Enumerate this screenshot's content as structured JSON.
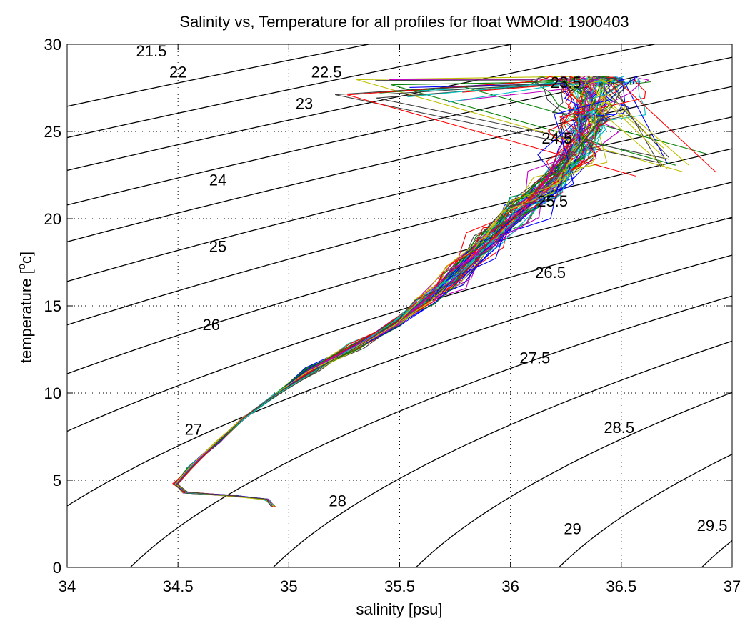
{
  "chart_data": {
    "type": "line",
    "title": "Salinity vs, Temperature for all profiles for float WMOId: 1900403",
    "xlabel": "salinity [psu]",
    "ylabel_main": "temperature [",
    "ylabel_sup": "o",
    "ylabel_end": "c]",
    "xlim": [
      34,
      37
    ],
    "ylim": [
      0,
      30
    ],
    "x_ticks": [
      34,
      34.5,
      35,
      35.5,
      36,
      36.5,
      37
    ],
    "x_tick_labels": [
      "34",
      "34.5",
      "35",
      "35.5",
      "36",
      "36.5",
      "37"
    ],
    "y_ticks": [
      0,
      5,
      10,
      15,
      20,
      25,
      30
    ],
    "y_tick_labels": [
      "0",
      "5",
      "10",
      "15",
      "20",
      "25",
      "30"
    ],
    "grid": true,
    "density_contours": {
      "levels": [
        21.5,
        22,
        22.5,
        23,
        23.5,
        24,
        24.5,
        25,
        25.5,
        26,
        26.5,
        27,
        27.5,
        28,
        28.5,
        29,
        29.5
      ],
      "labels": [
        {
          "text": "21.5",
          "x": 34.38,
          "y": 29.3
        },
        {
          "text": "22",
          "x": 34.5,
          "y": 28.1
        },
        {
          "text": "22.5",
          "x": 35.17,
          "y": 28.1
        },
        {
          "text": "23",
          "x": 35.07,
          "y": 26.3
        },
        {
          "text": "23.5",
          "x": 36.25,
          "y": 27.5
        },
        {
          "text": "24",
          "x": 34.68,
          "y": 21.9
        },
        {
          "text": "24.5",
          "x": 36.21,
          "y": 24.3
        },
        {
          "text": "25",
          "x": 34.68,
          "y": 18.1
        },
        {
          "text": "25.5",
          "x": 36.19,
          "y": 20.7
        },
        {
          "text": "26",
          "x": 34.65,
          "y": 13.6
        },
        {
          "text": "26.5",
          "x": 36.18,
          "y": 16.6
        },
        {
          "text": "27",
          "x": 34.57,
          "y": 7.6
        },
        {
          "text": "27.5",
          "x": 36.11,
          "y": 11.7
        },
        {
          "text": "28",
          "x": 35.22,
          "y": 3.5
        },
        {
          "text": "28.5",
          "x": 36.49,
          "y": 7.7
        },
        {
          "text": "29",
          "x": 36.28,
          "y": 1.9
        },
        {
          "text": "29.5",
          "x": 36.91,
          "y": 2.1
        }
      ]
    },
    "profile_colors": [
      "#0000ff",
      "#008000",
      "#ff0000",
      "#00bfbf",
      "#bf00bf",
      "#bfbf00",
      "#404040"
    ],
    "profile_count": 70,
    "profile_mean_path": [
      {
        "S": 34.93,
        "T": 3.5
      },
      {
        "S": 34.9,
        "T": 3.9
      },
      {
        "S": 34.75,
        "T": 4.1
      },
      {
        "S": 34.53,
        "T": 4.3
      },
      {
        "S": 34.49,
        "T": 4.8
      },
      {
        "S": 34.55,
        "T": 5.7
      },
      {
        "S": 34.68,
        "T": 7.2
      },
      {
        "S": 34.8,
        "T": 8.6
      },
      {
        "S": 34.93,
        "T": 9.8
      },
      {
        "S": 35.1,
        "T": 11.3
      },
      {
        "S": 35.3,
        "T": 12.7
      },
      {
        "S": 35.48,
        "T": 14.0
      },
      {
        "S": 35.62,
        "T": 15.3
      },
      {
        "S": 35.75,
        "T": 16.8
      },
      {
        "S": 35.9,
        "T": 18.7
      },
      {
        "S": 36.05,
        "T": 20.5
      },
      {
        "S": 36.18,
        "T": 22.0
      },
      {
        "S": 36.3,
        "T": 23.7
      },
      {
        "S": 36.35,
        "T": 25.5
      },
      {
        "S": 36.38,
        "T": 26.6
      }
    ]
  }
}
